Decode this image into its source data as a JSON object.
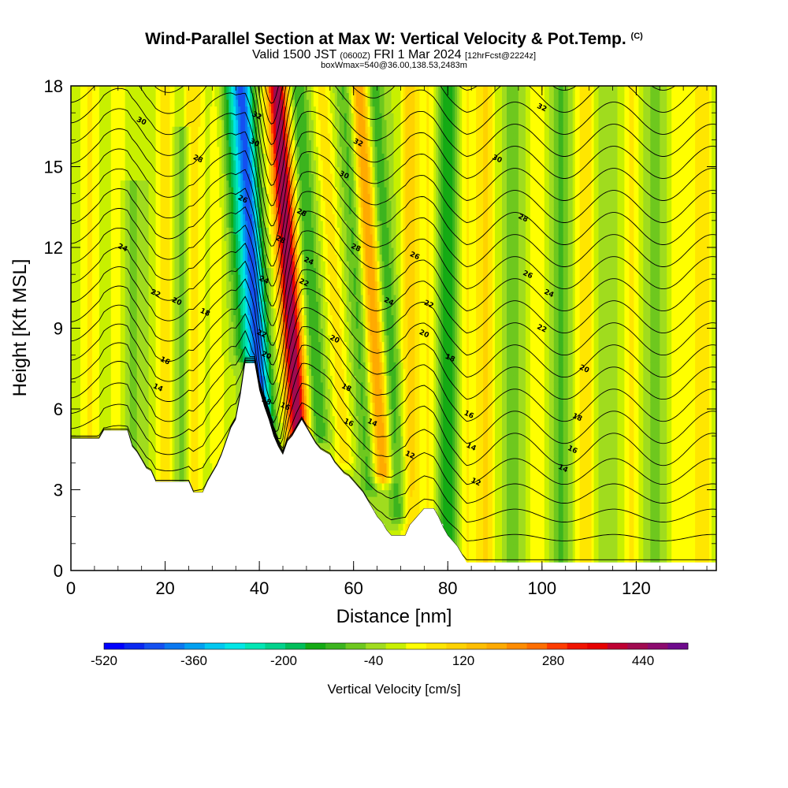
{
  "chart_data": {
    "type": "heatmap",
    "title": "Wind-Parallel Section at Max W: Vertical Velocity & Pot.Temp.",
    "title_mark": "(C)",
    "subtitle_main": "Valid 1500 JST ",
    "subtitle_small1": "(0600Z)",
    "subtitle_main2": " FRI 1 Mar 2024 ",
    "subtitle_small2": "[12hrFcst@2224z]",
    "subtitle2": "boxWmax=540@36.00,138.53,2483m",
    "xlabel": "Distance [nm]",
    "ylabel": "Height [Kft MSL]",
    "xlim": [
      0,
      137
    ],
    "ylim": [
      0,
      18
    ],
    "x_ticks": [
      "0",
      "20",
      "40",
      "60",
      "80",
      "100",
      "120"
    ],
    "y_ticks": [
      "0",
      "3",
      "6",
      "9",
      "12",
      "15",
      "18"
    ],
    "colorbar": {
      "label": "Vertical Velocity [cm/s]",
      "range": [
        -520,
        520
      ],
      "step": 40,
      "tick_labels": [
        "-520",
        "-360",
        "-200",
        "-40",
        "120",
        "280",
        "440"
      ],
      "colors": [
        "#0000ff",
        "#0a28f0",
        "#1450f0",
        "#0a78f0",
        "#00a0f0",
        "#00c8f0",
        "#00e6e6",
        "#00e6b4",
        "#00d28c",
        "#00be5a",
        "#14aa14",
        "#3cb41e",
        "#6ec81e",
        "#a0dc1e",
        "#c8f000",
        "#ffff00",
        "#ffe600",
        "#ffd200",
        "#ffbe00",
        "#ffaa00",
        "#ff8c00",
        "#ff6e00",
        "#ff3c00",
        "#f01400",
        "#e60000",
        "#be0032",
        "#a00a50",
        "#8c0a6e",
        "#6e0a8c"
      ]
    },
    "terrain_kft": [
      [
        0,
        4.9
      ],
      [
        6,
        4.9
      ],
      [
        7,
        5.2
      ],
      [
        12,
        5.2
      ],
      [
        13,
        4.6
      ],
      [
        14,
        4.4
      ],
      [
        15,
        4.1
      ],
      [
        16,
        3.8
      ],
      [
        17,
        3.7
      ],
      [
        18,
        3.3
      ],
      [
        25,
        3.3
      ],
      [
        26,
        2.9
      ],
      [
        28,
        2.9
      ],
      [
        29,
        3.3
      ],
      [
        30,
        3.6
      ],
      [
        31,
        3.9
      ],
      [
        32,
        4.3
      ],
      [
        33,
        4.8
      ],
      [
        34,
        5.3
      ],
      [
        35,
        5.6
      ],
      [
        36,
        6.5
      ],
      [
        37,
        7.7
      ],
      [
        39,
        7.7
      ],
      [
        40,
        6.7
      ],
      [
        41,
        6.1
      ],
      [
        42,
        5.6
      ],
      [
        43,
        5.0
      ],
      [
        44,
        4.6
      ],
      [
        45,
        4.3
      ],
      [
        46,
        4.8
      ],
      [
        47,
        5.0
      ],
      [
        48,
        5.3
      ],
      [
        49,
        5.6
      ],
      [
        50,
        5.3
      ],
      [
        51,
        5.0
      ],
      [
        52,
        4.7
      ],
      [
        53,
        4.5
      ],
      [
        54,
        4.4
      ],
      [
        55,
        4.3
      ],
      [
        56,
        4.0
      ],
      [
        57,
        3.8
      ],
      [
        58,
        3.6
      ],
      [
        59,
        3.5
      ],
      [
        60,
        3.3
      ],
      [
        61,
        3.1
      ],
      [
        62,
        2.9
      ],
      [
        63,
        2.6
      ],
      [
        64,
        2.3
      ],
      [
        65,
        2.0
      ],
      [
        66,
        1.8
      ],
      [
        67,
        1.5
      ],
      [
        68,
        1.3
      ],
      [
        69,
        1.3
      ],
      [
        71,
        1.3
      ],
      [
        72,
        1.7
      ],
      [
        73,
        1.9
      ],
      [
        74,
        2.1
      ],
      [
        75,
        2.3
      ],
      [
        77,
        2.3
      ],
      [
        78,
        2.0
      ],
      [
        79,
        1.6
      ],
      [
        80,
        1.3
      ],
      [
        81,
        1.1
      ],
      [
        82,
        0.9
      ],
      [
        83,
        0.6
      ],
      [
        84,
        0.3
      ],
      [
        137,
        0.3
      ]
    ],
    "w_bands": [
      {
        "x": 4,
        "w": 90,
        "h": [
          0,
          18
        ]
      },
      {
        "x": 10,
        "w": 60,
        "h": [
          0,
          18
        ]
      },
      {
        "x": 13,
        "w": -60,
        "h": [
          3,
          14
        ]
      },
      {
        "x": 20,
        "w": 100,
        "h": [
          3,
          18
        ]
      },
      {
        "x": 24,
        "w": -80,
        "h": [
          3,
          16
        ]
      },
      {
        "x": 26,
        "w": 120,
        "h": [
          3,
          18
        ]
      },
      {
        "x": 31,
        "w": 60,
        "h": [
          4,
          18
        ]
      },
      {
        "x": 36,
        "w": -120,
        "h": [
          8,
          18
        ]
      },
      {
        "x": 39,
        "w": -450,
        "h": [
          4.5,
          18
        ]
      },
      {
        "x": 46.5,
        "w": 520,
        "h": [
          4.5,
          18
        ]
      },
      {
        "x": 51,
        "w": -120,
        "h": [
          5,
          18
        ]
      },
      {
        "x": 56,
        "w": 100,
        "h": [
          4,
          18
        ]
      },
      {
        "x": 61,
        "w": -100,
        "h": [
          3,
          18
        ]
      },
      {
        "x": 64,
        "w": 260,
        "h": [
          3.5,
          18
        ]
      },
      {
        "x": 67,
        "w": -120,
        "h": [
          2,
          18
        ]
      },
      {
        "x": 72,
        "w": 140,
        "h": [
          1.5,
          18
        ]
      },
      {
        "x": 76,
        "w": 80,
        "h": [
          1.5,
          18
        ]
      },
      {
        "x": 80,
        "w": -150,
        "h": [
          0.5,
          18
        ]
      },
      {
        "x": 84,
        "w": 80,
        "h": [
          0.3,
          18
        ]
      },
      {
        "x": 88,
        "w": 130,
        "h": [
          0.3,
          18
        ]
      },
      {
        "x": 94,
        "w": -60,
        "h": [
          0.3,
          18
        ]
      },
      {
        "x": 99,
        "w": 70,
        "h": [
          0.3,
          18
        ]
      },
      {
        "x": 104,
        "w": -90,
        "h": [
          0.3,
          18
        ]
      },
      {
        "x": 109,
        "w": 120,
        "h": [
          0.3,
          18
        ]
      },
      {
        "x": 114,
        "w": -40,
        "h": [
          0.3,
          18
        ]
      },
      {
        "x": 119,
        "w": 90,
        "h": [
          0.3,
          18
        ]
      },
      {
        "x": 124,
        "w": -60,
        "h": [
          0.3,
          18
        ]
      },
      {
        "x": 129,
        "w": 80,
        "h": [
          0.3,
          18
        ]
      },
      {
        "x": 134,
        "w": 120,
        "h": [
          0.3,
          18
        ]
      }
    ],
    "contour_labels": [
      {
        "text": "30",
        "x": 15,
        "y": 16.7
      },
      {
        "text": "28",
        "x": 27,
        "y": 15.3
      },
      {
        "text": "24",
        "x": 11,
        "y": 12.0
      },
      {
        "text": "22",
        "x": 18,
        "y": 10.3
      },
      {
        "text": "20",
        "x": 22.5,
        "y": 10.0
      },
      {
        "text": "18",
        "x": 28.5,
        "y": 9.6
      },
      {
        "text": "16",
        "x": 20,
        "y": 7.8
      },
      {
        "text": "14",
        "x": 18.5,
        "y": 6.8
      },
      {
        "text": "32",
        "x": 39.5,
        "y": 16.9
      },
      {
        "text": "30",
        "x": 39,
        "y": 15.9
      },
      {
        "text": "26",
        "x": 36.5,
        "y": 13.8
      },
      {
        "text": "28",
        "x": 44.5,
        "y": 12.3
      },
      {
        "text": "28",
        "x": 49,
        "y": 13.3
      },
      {
        "text": "24",
        "x": 41,
        "y": 10.8
      },
      {
        "text": "24",
        "x": 50.5,
        "y": 11.5
      },
      {
        "text": "22",
        "x": 40.5,
        "y": 8.8
      },
      {
        "text": "20",
        "x": 41.5,
        "y": 8.0
      },
      {
        "text": "22",
        "x": 49.5,
        "y": 10.7
      },
      {
        "text": "18",
        "x": 41.5,
        "y": 6.3
      },
      {
        "text": "16",
        "x": 45.5,
        "y": 6.1
      },
      {
        "text": "32",
        "x": 61,
        "y": 15.9
      },
      {
        "text": "30",
        "x": 58,
        "y": 14.7
      },
      {
        "text": "28",
        "x": 60.5,
        "y": 12.0
      },
      {
        "text": "26",
        "x": 73,
        "y": 11.7
      },
      {
        "text": "24",
        "x": 67.5,
        "y": 10.0
      },
      {
        "text": "22",
        "x": 76,
        "y": 9.9
      },
      {
        "text": "20",
        "x": 56,
        "y": 8.6
      },
      {
        "text": "20",
        "x": 75,
        "y": 8.8
      },
      {
        "text": "18",
        "x": 80.5,
        "y": 7.9
      },
      {
        "text": "18",
        "x": 58.5,
        "y": 6.8
      },
      {
        "text": "16",
        "x": 59,
        "y": 5.5
      },
      {
        "text": "14",
        "x": 64,
        "y": 5.5
      },
      {
        "text": "12",
        "x": 72,
        "y": 4.3
      },
      {
        "text": "16",
        "x": 84.5,
        "y": 5.8
      },
      {
        "text": "14",
        "x": 85,
        "y": 4.6
      },
      {
        "text": "12",
        "x": 86,
        "y": 3.3
      },
      {
        "text": "32",
        "x": 100,
        "y": 17.2
      },
      {
        "text": "30",
        "x": 90.5,
        "y": 15.3
      },
      {
        "text": "28",
        "x": 96,
        "y": 13.1
      },
      {
        "text": "26",
        "x": 97,
        "y": 11.0
      },
      {
        "text": "24",
        "x": 101.5,
        "y": 10.3
      },
      {
        "text": "22",
        "x": 100,
        "y": 9.0
      },
      {
        "text": "20",
        "x": 109,
        "y": 7.5
      },
      {
        "text": "18",
        "x": 107.5,
        "y": 5.7
      },
      {
        "text": "16",
        "x": 106.5,
        "y": 4.5
      },
      {
        "text": "14",
        "x": 104.5,
        "y": 3.8
      }
    ]
  },
  "colors": {
    "background": "#ffffff",
    "terrain": "#ffffff",
    "contour": "#000000"
  }
}
